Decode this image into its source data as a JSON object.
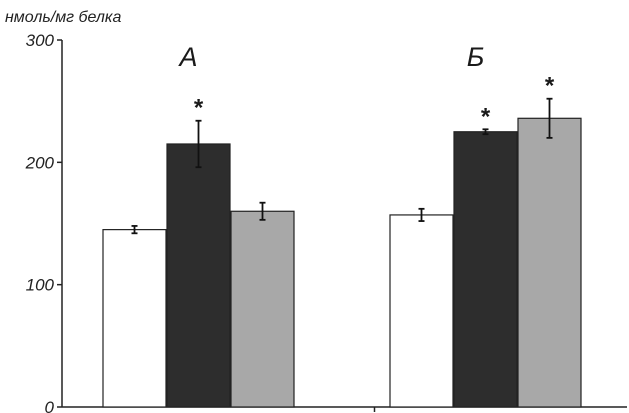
{
  "chart_data": {
    "type": "bar",
    "ylabel": "нмоль/мг белка",
    "ylim": [
      0,
      300
    ],
    "yticks": [
      0,
      100,
      200,
      300
    ],
    "ytick_labels": [
      "0",
      "100",
      "200",
      "300"
    ],
    "grid": false,
    "legend": "none",
    "groups": [
      {
        "label": "А",
        "bars": [
          {
            "value": 145,
            "error": 3,
            "color": "#ffffff",
            "significant": false
          },
          {
            "value": 215,
            "error": 19,
            "color": "#2d2d2d",
            "significant": true
          },
          {
            "value": 160,
            "error": 7,
            "color": "#a8a8a8",
            "significant": false
          }
        ]
      },
      {
        "label": "Б",
        "bars": [
          {
            "value": 157,
            "error": 5,
            "color": "#ffffff",
            "significant": false
          },
          {
            "value": 225,
            "error": 2,
            "color": "#2d2d2d",
            "significant": true
          },
          {
            "value": 236,
            "error": 16,
            "color": "#a8a8a8",
            "significant": true
          }
        ]
      }
    ],
    "significance_mark": "*"
  }
}
